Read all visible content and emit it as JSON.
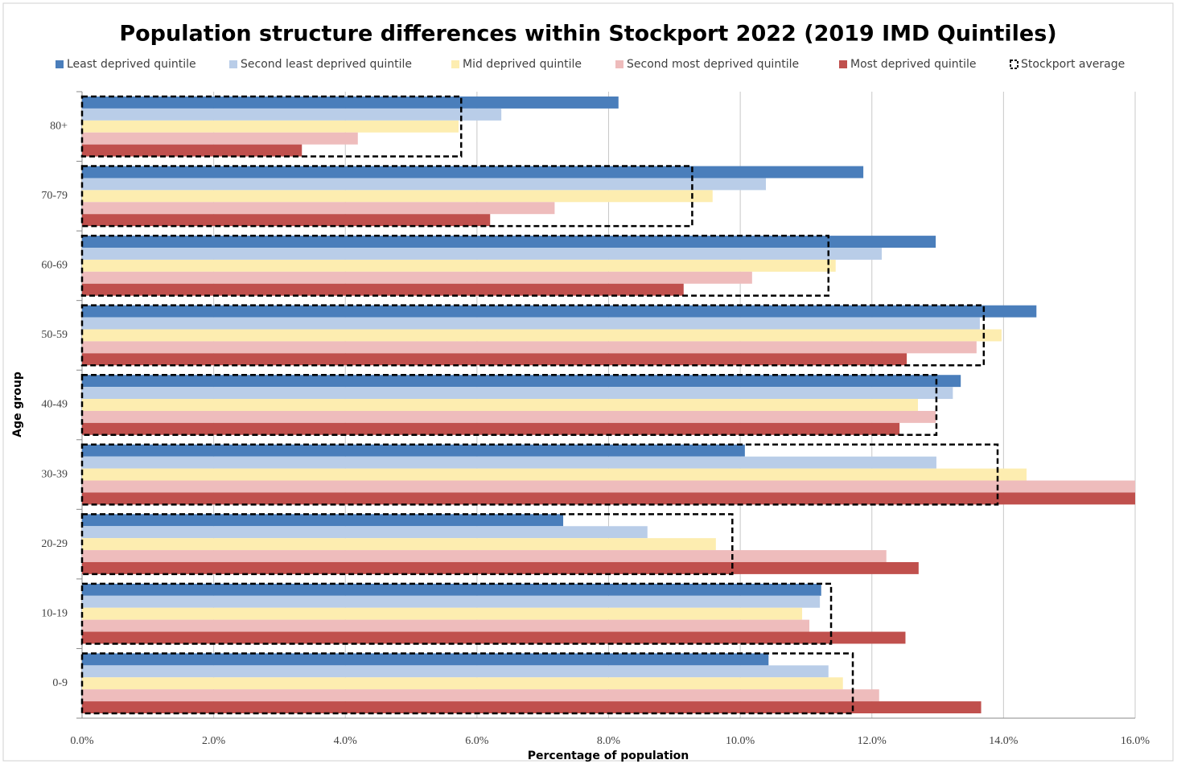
{
  "chart_data": {
    "type": "bar",
    "orientation": "horizontal",
    "title": "Population structure differences within Stockport 2022 (2019 IMD Quintiles)",
    "x_label": "Percentage of population",
    "y_label": "Age group",
    "categories": [
      "0-9",
      "10-19",
      "20-29",
      "30-39",
      "40-49",
      "50-59",
      "60-69",
      "70-79",
      "80+"
    ],
    "series": [
      {
        "name": "Least deprived quintile",
        "color": "#4a7ebb",
        "values": [
          10.43,
          11.23,
          7.31,
          10.07,
          13.35,
          14.5,
          12.97,
          11.87,
          8.15
        ]
      },
      {
        "name": "Second least deprived quintile",
        "color": "#b9cde8",
        "values": [
          11.34,
          11.21,
          8.59,
          12.98,
          13.23,
          13.64,
          12.15,
          10.39,
          6.37
        ]
      },
      {
        "name": "Mid deprived quintile",
        "color": "#fdedb0",
        "values": [
          11.56,
          10.94,
          9.63,
          14.35,
          12.7,
          13.97,
          11.45,
          9.58,
          5.72
        ]
      },
      {
        "name": "Second most deprived quintile",
        "color": "#eebcbc",
        "values": [
          12.11,
          11.05,
          12.22,
          16,
          12.97,
          13.59,
          10.18,
          7.18,
          4.19
        ]
      },
      {
        "name": "Most deprived quintile",
        "color": "#c0504d",
        "values": [
          13.66,
          12.51,
          12.71,
          16,
          12.42,
          12.53,
          9.14,
          6.2,
          3.34
        ]
      },
      {
        "name": "Stockport average",
        "color": "#000000",
        "style": "dashed-outline",
        "values": [
          11.71,
          11.38,
          9.88,
          13.91,
          12.98,
          13.7,
          11.34,
          9.27,
          5.76
        ]
      }
    ],
    "xlim": [
      0,
      16
    ],
    "xticks": [
      {
        "value": 0,
        "label": "0.0%"
      },
      {
        "value": 2,
        "label": "2.0%"
      },
      {
        "value": 4,
        "label": "4.0%"
      },
      {
        "value": 6,
        "label": "6.0%"
      },
      {
        "value": 8,
        "label": "8.0%"
      },
      {
        "value": 10,
        "label": "10.0%"
      },
      {
        "value": 12,
        "label": "12.0%"
      },
      {
        "value": 14,
        "label": "14.0%"
      },
      {
        "value": 16,
        "label": "16.0%"
      }
    ],
    "grid": true,
    "legend": "top"
  }
}
